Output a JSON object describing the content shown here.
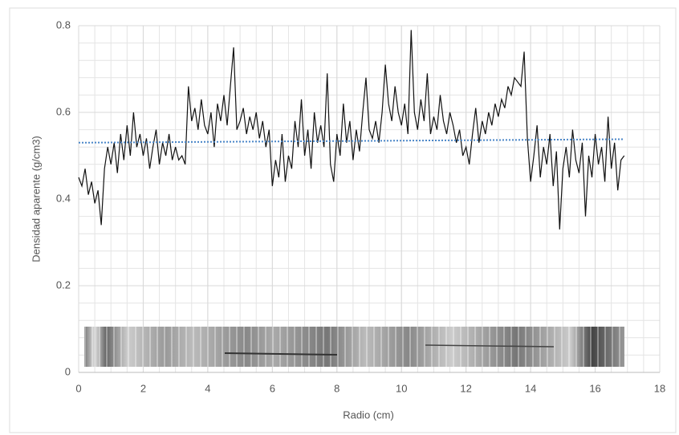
{
  "chart_data": {
    "type": "line",
    "x_label": "Radio (cm)",
    "y_label": "Densidad aparente (g/cm3)",
    "xlim": [
      0,
      18
    ],
    "xticks": [
      0,
      2,
      4,
      6,
      8,
      10,
      12,
      14,
      16,
      18
    ],
    "ylim": [
      0,
      0.8
    ],
    "yticks": [
      0,
      0.2,
      0.4,
      0.6,
      0.8
    ],
    "grid": true,
    "x_minor_step": 0.5,
    "y_minor_step": 0.04,
    "series": [
      {
        "color": "#111111",
        "style": "solid",
        "x": [
          0,
          0.1,
          0.2,
          0.3,
          0.4,
          0.5,
          0.6,
          0.7,
          0.8,
          0.9,
          1,
          1.1,
          1.2,
          1.3,
          1.4,
          1.5,
          1.6,
          1.7,
          1.8,
          1.9,
          2,
          2.1,
          2.2,
          2.3,
          2.4,
          2.5,
          2.6,
          2.7,
          2.8,
          2.9,
          3,
          3.1,
          3.2,
          3.3,
          3.4,
          3.5,
          3.6,
          3.7,
          3.8,
          3.9,
          4,
          4.1,
          4.2,
          4.3,
          4.4,
          4.5,
          4.6,
          4.7,
          4.8,
          4.9,
          5,
          5.1,
          5.2,
          5.3,
          5.4,
          5.5,
          5.6,
          5.7,
          5.8,
          5.9,
          6,
          6.1,
          6.2,
          6.3,
          6.4,
          6.5,
          6.6,
          6.7,
          6.8,
          6.9,
          7,
          7.1,
          7.2,
          7.3,
          7.4,
          7.5,
          7.6,
          7.7,
          7.8,
          7.9,
          8,
          8.1,
          8.2,
          8.3,
          8.4,
          8.5,
          8.6,
          8.7,
          8.8,
          8.9,
          9,
          9.1,
          9.2,
          9.3,
          9.4,
          9.5,
          9.6,
          9.7,
          9.8,
          9.9,
          10,
          10.1,
          10.2,
          10.3,
          10.4,
          10.5,
          10.6,
          10.7,
          10.8,
          10.9,
          11,
          11.1,
          11.2,
          11.3,
          11.4,
          11.5,
          11.6,
          11.7,
          11.8,
          11.9,
          12,
          12.1,
          12.2,
          12.3,
          12.4,
          12.5,
          12.6,
          12.7,
          12.8,
          12.9,
          13,
          13.1,
          13.2,
          13.3,
          13.4,
          13.5,
          13.6,
          13.7,
          13.8,
          13.9,
          14,
          14.1,
          14.2,
          14.3,
          14.4,
          14.5,
          14.6,
          14.7,
          14.8,
          14.9,
          15,
          15.1,
          15.2,
          15.3,
          15.4,
          15.5,
          15.6,
          15.7,
          15.8,
          15.9,
          16,
          16.1,
          16.2,
          16.3,
          16.4,
          16.5,
          16.6,
          16.7,
          16.8,
          16.9
        ],
        "values": [
          0.45,
          0.43,
          0.47,
          0.41,
          0.44,
          0.39,
          0.42,
          0.34,
          0.47,
          0.52,
          0.48,
          0.53,
          0.46,
          0.55,
          0.49,
          0.57,
          0.5,
          0.6,
          0.52,
          0.55,
          0.5,
          0.54,
          0.47,
          0.52,
          0.56,
          0.48,
          0.53,
          0.5,
          0.55,
          0.49,
          0.52,
          0.49,
          0.5,
          0.48,
          0.66,
          0.58,
          0.61,
          0.56,
          0.63,
          0.57,
          0.55,
          0.6,
          0.52,
          0.62,
          0.58,
          0.64,
          0.57,
          0.66,
          0.75,
          0.56,
          0.58,
          0.61,
          0.55,
          0.59,
          0.56,
          0.6,
          0.54,
          0.58,
          0.52,
          0.56,
          0.43,
          0.49,
          0.45,
          0.55,
          0.44,
          0.5,
          0.47,
          0.58,
          0.52,
          0.63,
          0.5,
          0.56,
          0.47,
          0.6,
          0.53,
          0.57,
          0.52,
          0.69,
          0.48,
          0.44,
          0.55,
          0.5,
          0.62,
          0.53,
          0.58,
          0.49,
          0.56,
          0.51,
          0.6,
          0.68,
          0.56,
          0.54,
          0.58,
          0.53,
          0.6,
          0.71,
          0.62,
          0.58,
          0.66,
          0.6,
          0.57,
          0.62,
          0.55,
          0.79,
          0.6,
          0.56,
          0.63,
          0.58,
          0.69,
          0.55,
          0.59,
          0.56,
          0.64,
          0.58,
          0.55,
          0.6,
          0.57,
          0.53,
          0.56,
          0.5,
          0.52,
          0.48,
          0.55,
          0.61,
          0.53,
          0.58,
          0.55,
          0.6,
          0.57,
          0.62,
          0.59,
          0.63,
          0.61,
          0.66,
          0.64,
          0.68,
          0.67,
          0.66,
          0.74,
          0.54,
          0.44,
          0.5,
          0.57,
          0.45,
          0.52,
          0.48,
          0.55,
          0.43,
          0.51,
          0.33,
          0.47,
          0.52,
          0.45,
          0.56,
          0.49,
          0.46,
          0.53,
          0.36,
          0.5,
          0.45,
          0.55,
          0.48,
          0.52,
          0.44,
          0.59,
          0.47,
          0.53,
          0.42,
          0.49,
          0.5
        ]
      },
      {
        "color": "#4a86c8",
        "style": "dotted",
        "x": [
          0,
          16.9
        ],
        "values": [
          0.53,
          0.538
        ]
      }
    ]
  }
}
